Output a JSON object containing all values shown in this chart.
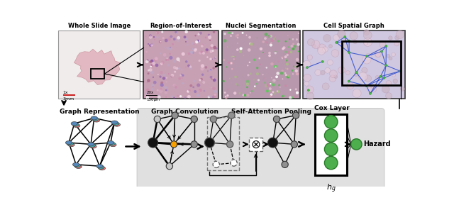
{
  "top_labels": [
    "Whole Slide Image",
    "Region-of-Interest",
    "Nuclei Segmentation",
    "Cell Spatial Graph"
  ],
  "bottom_labels": [
    "Graph Representation",
    "Graph Convolution",
    "Self-Attention Pooling"
  ],
  "scale_bar_1x": "1x\n3mm",
  "scale_bar_20x": "20x\n150μm",
  "cox_label": "Cox Layer",
  "hazard_label": "Hazard",
  "bg_color": "#ffffff",
  "gray_panel_color": "#e2e2e2",
  "node_black": "#111111",
  "node_gray": "#909090",
  "node_lightgray": "#c8c8c8",
  "node_orange": "#f5a000",
  "node_green": "#4cae4c",
  "node_pink": "#e87878",
  "node_blue": "#5588bb",
  "node_teal": "#44aaaa",
  "node_salmon": "#f0a0a0"
}
